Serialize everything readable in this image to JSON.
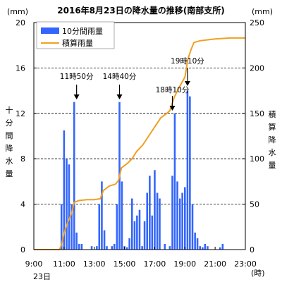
{
  "chart_data": {
    "type": "bar",
    "title": "2016年8月23日の降水量の推移(南部支所)",
    "y_left_unit": "(mm)",
    "y_right_unit": "(mm)",
    "y_left_label": "十分間降水量",
    "y_right_label": "積算降水量",
    "x_unit": "(時)",
    "date_label": "23日",
    "ylim_left": [
      0,
      20
    ],
    "ylim_right": [
      0,
      250
    ],
    "xlim": [
      9,
      23
    ],
    "x_ticks": [
      "9:00",
      "11:00",
      "13:00",
      "15:00",
      "17:00",
      "19:00",
      "21:00",
      "23:00"
    ],
    "y_left_ticks": [
      "0",
      "4",
      "8",
      "12",
      "16",
      "20"
    ],
    "y_right_ticks": [
      "0",
      "50",
      "100",
      "150",
      "200",
      "250"
    ],
    "grid": "horizontal-dashed",
    "legend_position": "top-left",
    "series": [
      {
        "name": "10分間雨量",
        "kind": "bar",
        "axis": "left",
        "color": "#3366ff",
        "x": [
          10.83,
          11.0,
          11.17,
          11.33,
          11.5,
          11.67,
          11.83,
          12.0,
          12.17,
          12.33,
          12.5,
          12.67,
          12.83,
          13.0,
          13.17,
          13.33,
          13.5,
          13.67,
          13.83,
          14.0,
          14.17,
          14.33,
          14.5,
          14.67,
          14.83,
          15.0,
          15.17,
          15.33,
          15.5,
          15.67,
          15.83,
          16.0,
          16.17,
          16.33,
          16.5,
          16.67,
          16.83,
          17.0,
          17.17,
          17.33,
          17.5,
          17.67,
          17.83,
          18.0,
          18.17,
          18.33,
          18.5,
          18.67,
          18.83,
          19.0,
          19.17,
          19.33,
          19.5,
          19.67,
          19.83,
          20.0,
          20.17,
          20.33,
          20.5,
          20.67,
          20.83,
          21.0,
          21.17,
          21.33,
          21.5,
          21.67,
          21.83,
          22.0,
          22.17
        ],
        "values": [
          4,
          10.5,
          8,
          7.5,
          4,
          13,
          1.5,
          0.5,
          0.5,
          0,
          0,
          0,
          0.3,
          0,
          0.3,
          4,
          6,
          1.7,
          0.3,
          0,
          0.3,
          0.5,
          4,
          13,
          6,
          0.3,
          0.2,
          1,
          4.5,
          2.5,
          3,
          3.5,
          0.3,
          2.5,
          5,
          6.5,
          3,
          7,
          5,
          4.5,
          0,
          0.5,
          0,
          0.3,
          6.5,
          12,
          6,
          4.5,
          5,
          5.5,
          14,
          13.5,
          4,
          1.5,
          1,
          0.3,
          0.2,
          0.5,
          0.3,
          0,
          0,
          0,
          0,
          0.2,
          0.5,
          0,
          0,
          0,
          0
        ]
      },
      {
        "name": "積算雨量",
        "kind": "line",
        "axis": "right",
        "color": "#f0a020",
        "x": [
          9,
          10.7,
          10.83,
          11.0,
          11.2,
          11.5,
          11.67,
          11.83,
          12.0,
          12.5,
          13.0,
          13.4,
          13.6,
          14.0,
          14.4,
          14.6,
          14.8,
          15.2,
          15.5,
          15.8,
          16.2,
          16.6,
          17.0,
          17.4,
          17.8,
          18.0,
          18.3,
          18.6,
          19.0,
          19.2,
          19.4,
          19.6,
          20.0,
          20.5,
          21.0,
          22.0,
          23.0
        ],
        "values": [
          0,
          0,
          5,
          18,
          28,
          40,
          52,
          53,
          54,
          55,
          55,
          56,
          65,
          70,
          72,
          76,
          90,
          95,
          100,
          108,
          115,
          125,
          135,
          145,
          150,
          153,
          168,
          178,
          190,
          210,
          220,
          228,
          230,
          231,
          232,
          233,
          233
        ]
      }
    ],
    "annotations": [
      {
        "label": "11時50分",
        "x": 11.83
      },
      {
        "label": "14時40分",
        "x": 14.67
      },
      {
        "label": "18時10分",
        "x": 18.17
      },
      {
        "label": "19時10分",
        "x": 19.17
      }
    ]
  }
}
